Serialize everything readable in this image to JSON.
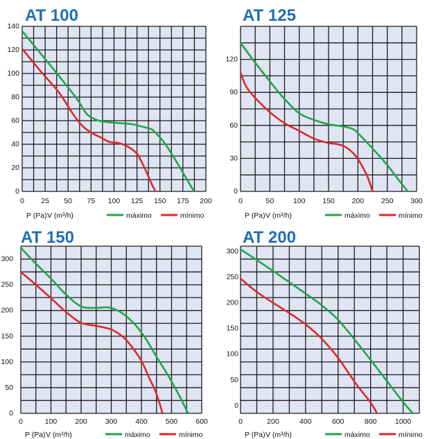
{
  "legend": {
    "p_label": "P (Pa)",
    "v_label": "V (m³/h)",
    "max_label": "máximo",
    "min_label": "mínimo",
    "max_color": "#1fa64a",
    "min_color": "#e0262b"
  },
  "colors": {
    "title": "#1f6fb5",
    "plot_bg": "#dfe5f3",
    "grid": "#1b1b1b"
  },
  "chart_data": [
    {
      "type": "line",
      "title": "AT 100",
      "xlabel": "V (m³/h)",
      "ylabel": "P (Pa)",
      "xlim": [
        0,
        200
      ],
      "ylim": [
        0,
        140
      ],
      "x_ticks": [
        0,
        25,
        50,
        75,
        100,
        125,
        150,
        175,
        200
      ],
      "y_ticks": [
        0,
        20,
        40,
        60,
        80,
        100,
        120,
        140
      ],
      "grid": {
        "v": 16,
        "h": 14
      },
      "series": [
        {
          "name": "máximo",
          "x": [
            0,
            20,
            40,
            60,
            70,
            80,
            90,
            105,
            120,
            130,
            140,
            145,
            155,
            165,
            175,
            187
          ],
          "y": [
            136,
            117,
            98,
            78,
            66,
            61,
            59,
            58,
            57,
            55,
            53,
            50,
            41,
            29,
            16,
            0
          ]
        },
        {
          "name": "mínimo",
          "x": [
            0,
            20,
            40,
            55,
            65,
            75,
            85,
            95,
            105,
            115,
            125,
            130,
            135,
            140,
            145
          ],
          "y": [
            121,
            102,
            84,
            66,
            56,
            50,
            46,
            42,
            41,
            38,
            32,
            25,
            17,
            8,
            0
          ]
        }
      ]
    },
    {
      "type": "line",
      "title": "AT 125",
      "xlabel": "V (m³/h)",
      "ylabel": "P (Pa)",
      "xlim": [
        0,
        300
      ],
      "ylim": [
        0,
        150
      ],
      "x_ticks": [
        0,
        50,
        100,
        150,
        200,
        250,
        300
      ],
      "y_ticks": [
        0,
        30,
        60,
        90,
        120
      ],
      "grid": {
        "v": 12,
        "h": 10
      },
      "series": [
        {
          "name": "máximo",
          "x": [
            0,
            25,
            50,
            75,
            100,
            125,
            150,
            175,
            190,
            200,
            225,
            250,
            270,
            285
          ],
          "y": [
            135,
            117,
            100,
            84,
            71,
            65,
            61,
            59,
            57,
            53,
            39,
            24,
            10,
            0
          ]
        },
        {
          "name": "mínimo",
          "x": [
            0,
            10,
            25,
            50,
            75,
            100,
            125,
            150,
            165,
            180,
            195,
            205,
            215,
            220,
            225
          ],
          "y": [
            108,
            95,
            85,
            72,
            62,
            55,
            48,
            44,
            43,
            40,
            33,
            25,
            15,
            8,
            0
          ]
        }
      ]
    },
    {
      "type": "line",
      "title": "AT 150",
      "xlabel": "V (m³/h)",
      "ylabel": "P (Pa)",
      "xlim": [
        0,
        600
      ],
      "ylim": [
        0,
        325
      ],
      "x_ticks": [
        0,
        100,
        200,
        300,
        400,
        500,
        600
      ],
      "y_ticks": [
        0,
        50,
        100,
        150,
        200,
        250,
        300
      ],
      "grid": {
        "v": 12,
        "h": 13
      },
      "series": [
        {
          "name": "máximo",
          "x": [
            0,
            50,
            100,
            150,
            200,
            250,
            290,
            330,
            370,
            410,
            450,
            490,
            525,
            555
          ],
          "y": [
            322,
            291,
            262,
            231,
            208,
            205,
            206,
            197,
            178,
            149,
            110,
            72,
            35,
            0
          ]
        },
        {
          "name": "mínimo",
          "x": [
            0,
            50,
            100,
            150,
            200,
            250,
            300,
            340,
            370,
            400,
            425,
            445,
            460,
            470
          ],
          "y": [
            275,
            250,
            224,
            197,
            176,
            170,
            163,
            148,
            128,
            102,
            70,
            45,
            20,
            0
          ]
        }
      ]
    },
    {
      "type": "line",
      "title": "AT 200",
      "xlabel": "V (m³/h)",
      "ylabel": "P (Pa)",
      "xlim": [
        0,
        1100
      ],
      "ylim": [
        -15,
        310
      ],
      "x_ticks": [
        0,
        200,
        400,
        600,
        800,
        1000
      ],
      "y_ticks": [
        0,
        50,
        100,
        150,
        200,
        250,
        300
      ],
      "grid": {
        "v": 11,
        "h": 13
      },
      "series": [
        {
          "name": "máximo",
          "x": [
            0,
            100,
            200,
            300,
            400,
            500,
            600,
            700,
            800,
            900,
            1000,
            1060
          ],
          "y": [
            304,
            283,
            262,
            240,
            218,
            195,
            167,
            129,
            89,
            48,
            7,
            -15
          ]
        },
        {
          "name": "mínimo",
          "x": [
            0,
            100,
            200,
            300,
            400,
            500,
            600,
            650,
            700,
            750,
            800,
            840
          ],
          "y": [
            247,
            221,
            200,
            180,
            158,
            130,
            93,
            70,
            47,
            26,
            6,
            -15
          ]
        }
      ]
    }
  ]
}
